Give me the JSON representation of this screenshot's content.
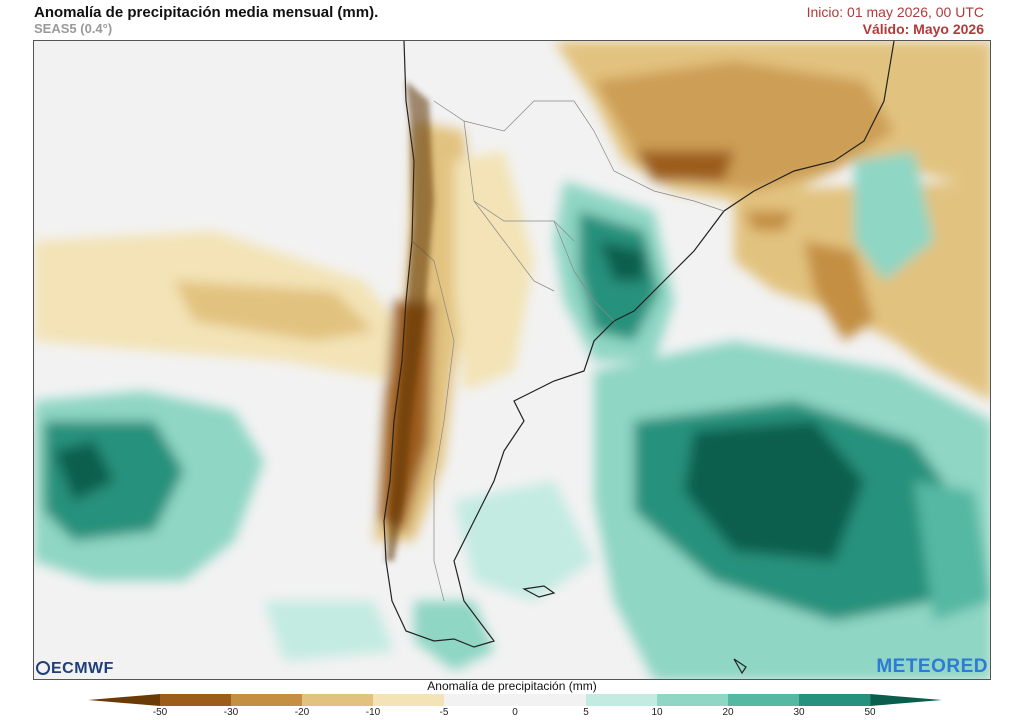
{
  "header": {
    "title": "Anomalía de precipitación media mensual (mm).",
    "subtitle": "SEAS5 (0.4°)",
    "init": "Inicio: 01 may 2026, 00 UTC",
    "valid": "Válido: Mayo 2026"
  },
  "logos": {
    "left": "ECMWF",
    "right": "METEORED"
  },
  "colorbar": {
    "title": "Anomalía de precipitación (mm)",
    "ticks": [
      "-50",
      "-30",
      "-20",
      "-10",
      "-5",
      "0",
      "5",
      "10",
      "20",
      "30",
      "50"
    ],
    "colors": [
      "#6b3a06",
      "#9c5d1a",
      "#c48f42",
      "#e2c27f",
      "#f3e3b6",
      "#f2f2f2",
      "#f2f2f2",
      "#c3ebe1",
      "#8fd6c4",
      "#55b8a2",
      "#26917c",
      "#0a5e4e"
    ]
  }
}
